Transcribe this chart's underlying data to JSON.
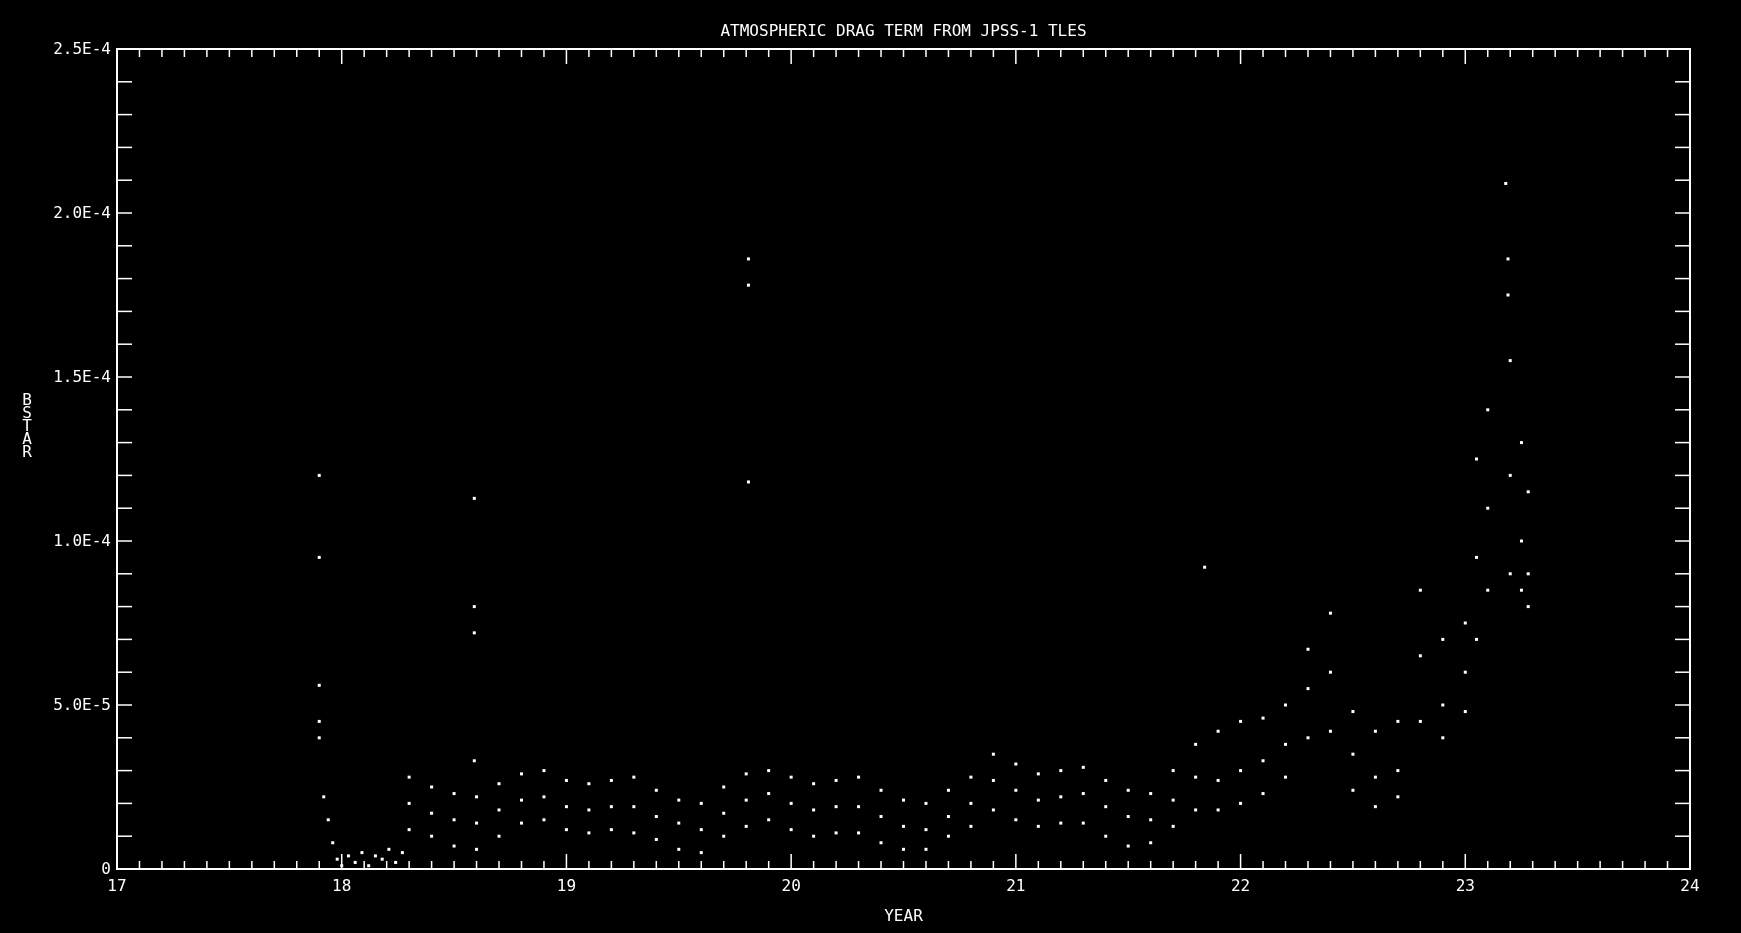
{
  "chart_data": {
    "type": "scatter",
    "title": "ATMOSPHERIC DRAG TERM FROM JPSS-1 TLES",
    "xlabel": "YEAR",
    "ylabel": "BSTAR",
    "xlim": [
      17,
      24
    ],
    "ylim": [
      0,
      0.00025
    ],
    "marker": "square",
    "xticks": [
      17,
      {
        "value": 17.1,
        "label": null
      },
      {
        "value": 17.2,
        "label": null
      },
      {
        "value": 17.3,
        "label": null
      },
      {
        "value": 17.4,
        "label": null
      },
      {
        "value": 17.5,
        "label": null
      },
      {
        "value": 17.6,
        "label": null
      },
      {
        "value": 17.7,
        "label": null
      },
      {
        "value": 17.8,
        "label": null
      },
      {
        "value": 17.9,
        "label": null
      },
      18,
      {
        "value": 18.1,
        "label": null
      },
      {
        "value": 18.2,
        "label": null
      },
      {
        "value": 18.3,
        "label": null
      },
      {
        "value": 18.4,
        "label": null
      },
      {
        "value": 18.5,
        "label": null
      },
      {
        "value": 18.6,
        "label": null
      },
      {
        "value": 18.7,
        "label": null
      },
      {
        "value": 18.8,
        "label": null
      },
      {
        "value": 18.9,
        "label": null
      },
      19,
      {
        "value": 19.1,
        "label": null
      },
      {
        "value": 19.2,
        "label": null
      },
      {
        "value": 19.3,
        "label": null
      },
      {
        "value": 19.4,
        "label": null
      },
      {
        "value": 19.5,
        "label": null
      },
      {
        "value": 19.6,
        "label": null
      },
      {
        "value": 19.7,
        "label": null
      },
      {
        "value": 19.8,
        "label": null
      },
      {
        "value": 19.9,
        "label": null
      },
      20,
      {
        "value": 20.1,
        "label": null
      },
      {
        "value": 20.2,
        "label": null
      },
      {
        "value": 20.3,
        "label": null
      },
      {
        "value": 20.4,
        "label": null
      },
      {
        "value": 20.5,
        "label": null
      },
      {
        "value": 20.6,
        "label": null
      },
      {
        "value": 20.7,
        "label": null
      },
      {
        "value": 20.8,
        "label": null
      },
      {
        "value": 20.9,
        "label": null
      },
      21,
      {
        "value": 21.1,
        "label": null
      },
      {
        "value": 21.2,
        "label": null
      },
      {
        "value": 21.3,
        "label": null
      },
      {
        "value": 21.4,
        "label": null
      },
      {
        "value": 21.5,
        "label": null
      },
      {
        "value": 21.6,
        "label": null
      },
      {
        "value": 21.7,
        "label": null
      },
      {
        "value": 21.8,
        "label": null
      },
      {
        "value": 21.9,
        "label": null
      },
      22,
      {
        "value": 22.1,
        "label": null
      },
      {
        "value": 22.2,
        "label": null
      },
      {
        "value": 22.3,
        "label": null
      },
      {
        "value": 22.4,
        "label": null
      },
      {
        "value": 22.5,
        "label": null
      },
      {
        "value": 22.6,
        "label": null
      },
      {
        "value": 22.7,
        "label": null
      },
      {
        "value": 22.8,
        "label": null
      },
      {
        "value": 22.9,
        "label": null
      },
      23,
      {
        "value": 23.1,
        "label": null
      },
      {
        "value": 23.2,
        "label": null
      },
      {
        "value": 23.3,
        "label": null
      },
      {
        "value": 23.4,
        "label": null
      },
      {
        "value": 23.5,
        "label": null
      },
      {
        "value": 23.6,
        "label": null
      },
      {
        "value": 23.7,
        "label": null
      },
      {
        "value": 23.8,
        "label": null
      },
      {
        "value": 23.9,
        "label": null
      },
      24
    ],
    "yticks": [
      0,
      {
        "value": 1e-05,
        "label": null
      },
      {
        "value": 2e-05,
        "label": null
      },
      {
        "value": 3e-05,
        "label": null
      },
      {
        "value": 4e-05,
        "label": null
      },
      {
        "value": 5e-05,
        "label": "5.0E-5"
      },
      {
        "value": 6e-05,
        "label": null
      },
      {
        "value": 7e-05,
        "label": null
      },
      {
        "value": 8e-05,
        "label": null
      },
      {
        "value": 9e-05,
        "label": null
      },
      {
        "value": 0.0001,
        "label": "1.0E-4"
      },
      {
        "value": 0.00011,
        "label": null
      },
      {
        "value": 0.00012,
        "label": null
      },
      {
        "value": 0.00013,
        "label": null
      },
      {
        "value": 0.00014,
        "label": null
      },
      {
        "value": 0.00015,
        "label": "1.5E-4"
      },
      {
        "value": 0.00016,
        "label": null
      },
      {
        "value": 0.00017,
        "label": null
      },
      {
        "value": 0.00018,
        "label": null
      },
      {
        "value": 0.00019,
        "label": null
      },
      {
        "value": 0.0002,
        "label": "2.0E-4"
      },
      {
        "value": 0.00021,
        "label": null
      },
      {
        "value": 0.00022,
        "label": null
      },
      {
        "value": 0.00023,
        "label": null
      },
      {
        "value": 0.00024,
        "label": null
      },
      {
        "value": 0.00025,
        "label": "2.5E-4"
      }
    ],
    "series": [
      {
        "color": "#ffffff",
        "x": [
          17.9,
          17.9,
          17.9,
          17.9,
          17.9,
          17.92,
          17.94,
          17.96,
          17.98,
          18.0,
          18.03,
          18.06,
          18.09,
          18.12,
          18.15,
          18.18,
          18.21,
          18.24,
          18.27,
          18.59,
          18.59,
          18.59,
          18.59,
          19.81,
          19.81,
          19.81,
          21.84,
          23.18,
          23.19,
          23.19,
          18.3,
          18.3,
          18.3,
          18.4,
          18.4,
          18.4,
          18.5,
          18.5,
          18.5,
          18.6,
          18.6,
          18.6,
          18.7,
          18.7,
          18.7,
          18.8,
          18.8,
          18.8,
          18.9,
          18.9,
          18.9,
          19.0,
          19.0,
          19.0,
          19.1,
          19.1,
          19.1,
          19.2,
          19.2,
          19.2,
          19.3,
          19.3,
          19.3,
          19.4,
          19.4,
          19.4,
          19.5,
          19.5,
          19.5,
          19.6,
          19.6,
          19.6,
          19.7,
          19.7,
          19.7,
          19.8,
          19.8,
          19.8,
          19.9,
          19.9,
          19.9,
          20.0,
          20.0,
          20.0,
          20.1,
          20.1,
          20.1,
          20.2,
          20.2,
          20.2,
          20.3,
          20.3,
          20.3,
          20.4,
          20.4,
          20.4,
          20.5,
          20.5,
          20.5,
          20.6,
          20.6,
          20.6,
          20.7,
          20.7,
          20.7,
          20.8,
          20.8,
          20.8,
          20.9,
          20.9,
          20.9,
          21.0,
          21.0,
          21.0,
          21.1,
          21.1,
          21.1,
          21.2,
          21.2,
          21.2,
          21.3,
          21.3,
          21.3,
          21.4,
          21.4,
          21.4,
          21.5,
          21.5,
          21.5,
          21.6,
          21.6,
          21.6,
          21.7,
          21.7,
          21.7,
          21.8,
          21.8,
          21.8,
          21.9,
          21.9,
          21.9,
          22.0,
          22.0,
          22.0,
          22.1,
          22.1,
          22.1,
          22.2,
          22.2,
          22.2,
          22.3,
          22.3,
          22.3,
          22.4,
          22.4,
          22.4,
          22.5,
          22.5,
          22.5,
          22.6,
          22.6,
          22.6,
          22.7,
          22.7,
          22.7,
          22.8,
          22.8,
          22.8,
          22.9,
          22.9,
          22.9,
          23.0,
          23.0,
          23.0,
          23.05,
          23.05,
          23.05,
          23.1,
          23.1,
          23.1,
          23.2,
          23.2,
          23.2,
          23.25,
          23.25,
          23.25,
          23.28,
          23.28,
          23.28
        ],
        "values": [
          0.00012,
          9.5e-05,
          5.6e-05,
          4.5e-05,
          4e-05,
          2.2e-05,
          1.5e-05,
          8e-06,
          3e-06,
          1e-06,
          4e-06,
          2e-06,
          5e-06,
          1e-06,
          4e-06,
          3e-06,
          6e-06,
          2e-06,
          5e-06,
          0.000113,
          8e-05,
          7.2e-05,
          3.3e-05,
          0.000186,
          0.000178,
          0.000118,
          9.2e-05,
          0.000209,
          0.000186,
          0.000175,
          1.2e-05,
          2e-05,
          2.8e-05,
          1e-05,
          1.7e-05,
          2.5e-05,
          7e-06,
          1.5e-05,
          2.3e-05,
          6e-06,
          1.4e-05,
          2.2e-05,
          1e-05,
          1.8e-05,
          2.6e-05,
          1.4e-05,
          2.1e-05,
          2.9e-05,
          1.5e-05,
          2.2e-05,
          3e-05,
          1.2e-05,
          1.9e-05,
          2.7e-05,
          1.1e-05,
          1.8e-05,
          2.6e-05,
          1.2e-05,
          1.9e-05,
          2.7e-05,
          1.1e-05,
          1.9e-05,
          2.8e-05,
          9e-06,
          1.6e-05,
          2.4e-05,
          6e-06,
          1.4e-05,
          2.1e-05,
          5e-06,
          1.2e-05,
          2e-05,
          1e-05,
          1.7e-05,
          2.5e-05,
          1.3e-05,
          2.1e-05,
          2.9e-05,
          1.5e-05,
          2.3e-05,
          3e-05,
          1.2e-05,
          2e-05,
          2.8e-05,
          1e-05,
          1.8e-05,
          2.6e-05,
          1.1e-05,
          1.9e-05,
          2.7e-05,
          1.1e-05,
          1.9e-05,
          2.8e-05,
          8e-06,
          1.6e-05,
          2.4e-05,
          6e-06,
          1.3e-05,
          2.1e-05,
          6e-06,
          1.2e-05,
          2e-05,
          1e-05,
          1.6e-05,
          2.4e-05,
          1.3e-05,
          2e-05,
          2.8e-05,
          1.8e-05,
          2.7e-05,
          3.5e-05,
          1.5e-05,
          2.4e-05,
          3.2e-05,
          1.3e-05,
          2.1e-05,
          2.9e-05,
          1.4e-05,
          2.2e-05,
          3e-05,
          1.4e-05,
          2.3e-05,
          3.1e-05,
          1e-05,
          1.9e-05,
          2.7e-05,
          7e-06,
          1.6e-05,
          2.4e-05,
          8e-06,
          1.5e-05,
          2.3e-05,
          1.3e-05,
          2.1e-05,
          3e-05,
          1.8e-05,
          2.8e-05,
          3.8e-05,
          1.8e-05,
          2.7e-05,
          4.2e-05,
          2e-05,
          3e-05,
          4.5e-05,
          2.3e-05,
          3.3e-05,
          4.6e-05,
          2.8e-05,
          3.8e-05,
          5e-05,
          4e-05,
          5.5e-05,
          6.7e-05,
          4.2e-05,
          6e-05,
          7.8e-05,
          2.4e-05,
          3.5e-05,
          4.8e-05,
          1.9e-05,
          2.8e-05,
          4.2e-05,
          2.2e-05,
          3e-05,
          4.5e-05,
          4.5e-05,
          6.5e-05,
          8.5e-05,
          4e-05,
          5e-05,
          7e-05,
          4.8e-05,
          6e-05,
          7.5e-05,
          7e-05,
          9.5e-05,
          0.000125,
          8.5e-05,
          0.00011,
          0.00014,
          9e-05,
          0.00012,
          0.000155,
          8.5e-05,
          0.0001,
          0.00013,
          8e-05,
          9e-05,
          0.000115
        ]
      }
    ]
  }
}
